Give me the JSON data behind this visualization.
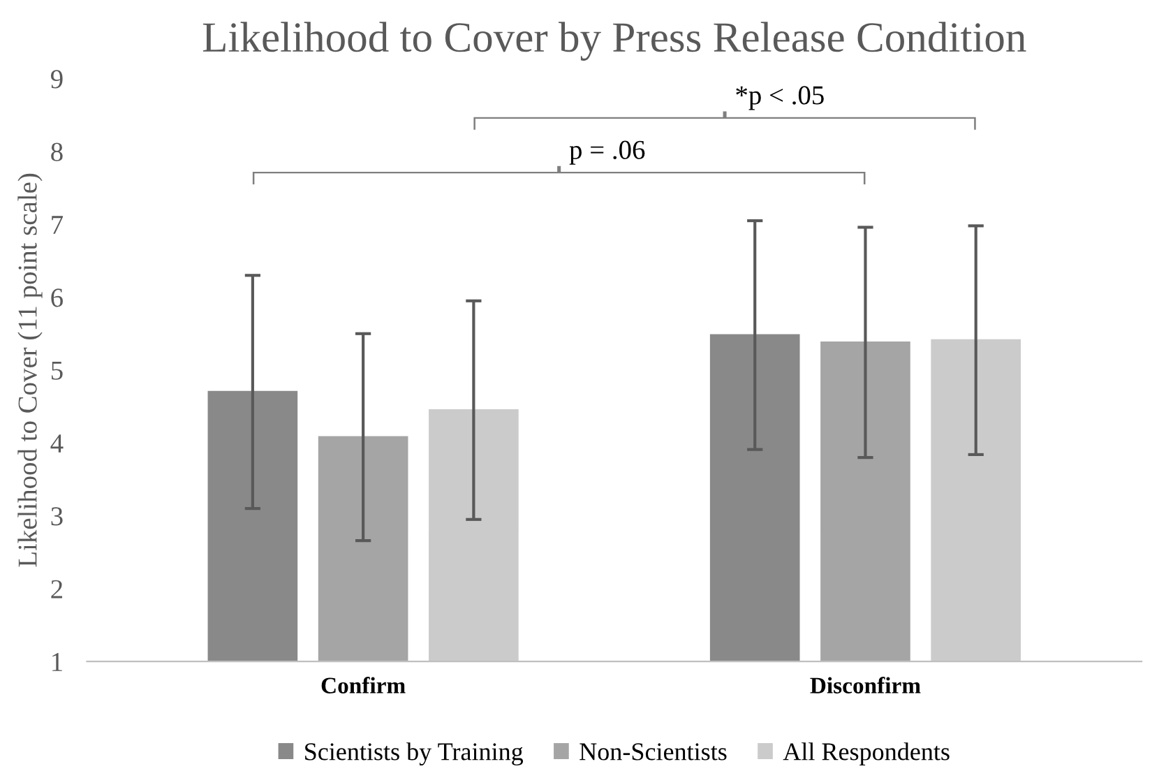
{
  "chart_data": {
    "type": "bar",
    "title": "Likelihood to Cover by Press Release Condition",
    "ylabel": "Likelihood to Cover (11 point scale)",
    "categories": [
      "Confirm",
      "Disconfirm"
    ],
    "series": [
      {
        "name": "Scientists by Training",
        "color": "#898989",
        "values": [
          4.7,
          5.48
        ],
        "errors": [
          1.6,
          1.57
        ]
      },
      {
        "name": "Non-Scientists",
        "color": "#a5a5a5",
        "values": [
          4.08,
          5.38
        ],
        "errors": [
          1.42,
          1.58
        ]
      },
      {
        "name": "All Respondents",
        "color": "#cbcbcb",
        "values": [
          4.45,
          5.41
        ],
        "errors": [
          1.5,
          1.57
        ]
      }
    ],
    "annotations": [
      "p = .06",
      "*p < .05"
    ],
    "ylim": [
      1,
      9
    ],
    "yticks": [
      1,
      2,
      3,
      4,
      5,
      6,
      7,
      8,
      9
    ],
    "grid": false,
    "legend": "bottom"
  }
}
